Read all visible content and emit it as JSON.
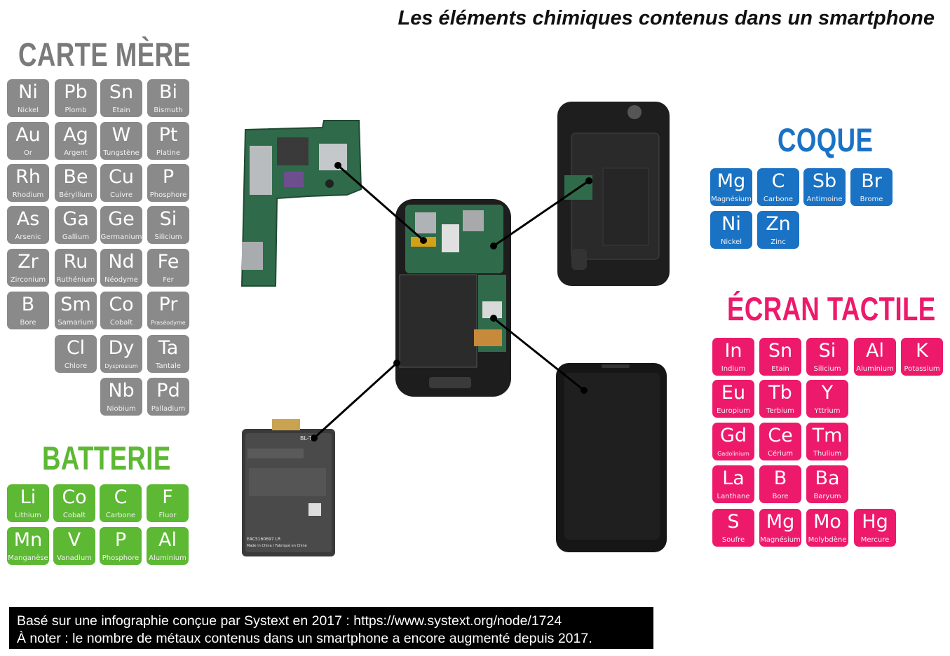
{
  "title": "Les éléments chimiques contenus dans un smartphone",
  "colors": {
    "carte_mere": "#8a8a8a",
    "batterie": "#5db833",
    "coque": "#1a72c4",
    "ecran": "#ed1a6c"
  },
  "groups": {
    "carte_mere": {
      "title": "CARTE MÈRE",
      "elements": [
        {
          "s": "Ni",
          "n": "Nickel"
        },
        {
          "s": "Pb",
          "n": "Plomb"
        },
        {
          "s": "Sn",
          "n": "Etain"
        },
        {
          "s": "Bi",
          "n": "Bismuth"
        },
        {
          "s": "Au",
          "n": "Or"
        },
        {
          "s": "Ag",
          "n": "Argent"
        },
        {
          "s": "W",
          "n": "Tungstène"
        },
        {
          "s": "Pt",
          "n": "Platine"
        },
        {
          "s": "Rh",
          "n": "Rhodium"
        },
        {
          "s": "Be",
          "n": "Béryllium"
        },
        {
          "s": "Cu",
          "n": "Cuivre"
        },
        {
          "s": "P",
          "n": "Phosphore"
        },
        {
          "s": "As",
          "n": "Arsenic"
        },
        {
          "s": "Ga",
          "n": "Gallium"
        },
        {
          "s": "Ge",
          "n": "Germanium"
        },
        {
          "s": "Si",
          "n": "Silicium"
        },
        {
          "s": "Zr",
          "n": "Zirconium"
        },
        {
          "s": "Ru",
          "n": "Ruthénium"
        },
        {
          "s": "Nd",
          "n": "Néodyme"
        },
        {
          "s": "Fe",
          "n": "Fer"
        },
        {
          "s": "B",
          "n": "Bore"
        },
        {
          "s": "Sm",
          "n": "Samarium"
        },
        {
          "s": "Co",
          "n": "Cobalt"
        },
        {
          "s": "Pr",
          "n": "Praséodyme"
        },
        {
          "s": "Cl",
          "n": "Chlore"
        },
        {
          "s": "Dy",
          "n": "Dysprosium"
        },
        {
          "s": "Ta",
          "n": "Tantale"
        },
        {
          "s": "Nb",
          "n": "Niobium"
        },
        {
          "s": "Pd",
          "n": "Palladium"
        }
      ]
    },
    "batterie": {
      "title": "BATTERIE",
      "elements": [
        {
          "s": "Li",
          "n": "Lithium"
        },
        {
          "s": "Co",
          "n": "Cobalt"
        },
        {
          "s": "C",
          "n": "Carbone"
        },
        {
          "s": "F",
          "n": "Fluor"
        },
        {
          "s": "Mn",
          "n": "Manganèse"
        },
        {
          "s": "V",
          "n": "Vanadium"
        },
        {
          "s": "P",
          "n": "Phosphore"
        },
        {
          "s": "Al",
          "n": "Aluminium"
        }
      ]
    },
    "coque": {
      "title": "COQUE",
      "elements": [
        {
          "s": "Mg",
          "n": "Magnésium"
        },
        {
          "s": "C",
          "n": "Carbone"
        },
        {
          "s": "Sb",
          "n": "Antimoine"
        },
        {
          "s": "Br",
          "n": "Brome"
        },
        {
          "s": "Ni",
          "n": "Nickel"
        },
        {
          "s": "Zn",
          "n": "Zinc"
        }
      ]
    },
    "ecran": {
      "title": "ÉCRAN TACTILE",
      "elements": [
        {
          "s": "In",
          "n": "Indium"
        },
        {
          "s": "Sn",
          "n": "Etain"
        },
        {
          "s": "Si",
          "n": "Silicium"
        },
        {
          "s": "Al",
          "n": "Aluminium"
        },
        {
          "s": "K",
          "n": "Potassium"
        },
        {
          "s": "Eu",
          "n": "Europium"
        },
        {
          "s": "Tb",
          "n": "Terbium"
        },
        {
          "s": "Y",
          "n": "Yttrium"
        },
        {
          "s": "Gd",
          "n": "Gadolinium"
        },
        {
          "s": "Ce",
          "n": "Cérium"
        },
        {
          "s": "Tm",
          "n": "Thulium"
        },
        {
          "s": "La",
          "n": "Lanthane"
        },
        {
          "s": "B",
          "n": "Bore"
        },
        {
          "s": "Ba",
          "n": "Baryum"
        },
        {
          "s": "S",
          "n": "Soufre"
        },
        {
          "s": "Mg",
          "n": "Magnésium"
        },
        {
          "s": "Mo",
          "n": "Molybdène"
        },
        {
          "s": "Hg",
          "n": "Mercure"
        }
      ]
    }
  },
  "battery_label": {
    "brand": "BL-T5",
    "code": "EAC5160697 LR",
    "made": "Made in China / Fabriqué en Chine"
  },
  "note": {
    "line1": "Basé sur une infographie conçue par Systext en 2017 : https://www.systext.org/node/1724",
    "line2": "À noter : le nombre de métaux contenus dans un smartphone a encore augmenté depuis 2017."
  }
}
